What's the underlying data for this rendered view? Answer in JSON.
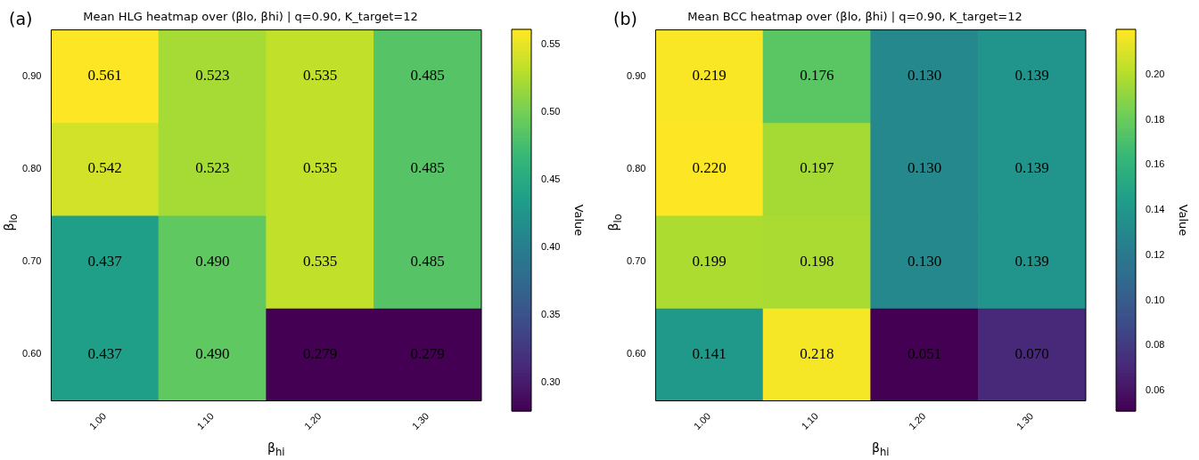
{
  "chart_data": [
    {
      "type": "heatmap",
      "title": "Mean HLG heatmap over (βlo, βhi) | q=0.90, K_target=12",
      "xlabel": "β$_{hi}$",
      "ylabel": "β$_{lo}$",
      "clabel": "Value",
      "annotations": [
        "(a)"
      ],
      "categories": [
        "1.00",
        "1.10",
        "1.20",
        "1.30"
      ],
      "y_categories": [
        "0.90",
        "0.80",
        "0.70",
        "0.60"
      ],
      "cells": [
        [
          0.561,
          0.523,
          0.535,
          0.485
        ],
        [
          0.542,
          0.523,
          0.535,
          0.485
        ],
        [
          0.437,
          0.49,
          0.535,
          0.485
        ],
        [
          0.437,
          0.49,
          0.279,
          0.279
        ]
      ],
      "cell_labels": [
        [
          "0.561",
          "0.523",
          "0.535",
          "0.485"
        ],
        [
          "0.542",
          "0.523",
          "0.535",
          "0.485"
        ],
        [
          "0.437",
          "0.490",
          "0.535",
          "0.485"
        ],
        [
          "0.437",
          "0.490",
          "0.279",
          "0.279"
        ]
      ],
      "clim": [
        0.279,
        0.561
      ],
      "cticks": [
        {
          "value": 0.3,
          "label": "0.30"
        },
        0.35,
        {
          "value": 0.4,
          "label": "0.40"
        },
        0.45,
        {
          "value": 0.5,
          "label": "0.50"
        },
        0.55
      ]
    },
    {
      "type": "heatmap",
      "title": "Mean BCC heatmap over (βlo, βhi) | q=0.90, K_target=12",
      "xlabel": "β$_{hi}$",
      "ylabel": "β$_{lo}$",
      "clabel": "Value",
      "annotations": [
        "(b)"
      ],
      "categories": [
        "1.00",
        "1.10",
        "1.20",
        "1.30"
      ],
      "y_categories": [
        "0.90",
        "0.80",
        "0.70",
        "0.60"
      ],
      "cells": [
        [
          0.219,
          0.176,
          0.13,
          0.139
        ],
        [
          0.22,
          0.197,
          0.13,
          0.139
        ],
        [
          0.199,
          0.198,
          0.13,
          0.139
        ],
        [
          0.141,
          0.218,
          0.051,
          0.07
        ]
      ],
      "cell_labels": [
        [
          "0.219",
          "0.176",
          "0.130",
          "0.139"
        ],
        [
          "0.220",
          "0.197",
          "0.130",
          "0.139"
        ],
        [
          "0.199",
          "0.198",
          "0.130",
          "0.139"
        ],
        [
          "0.141",
          "0.218",
          "0.051",
          "0.070"
        ]
      ],
      "clim": [
        0.051,
        0.22
      ],
      "cticks": [
        0.06,
        0.08,
        {
          "value": 0.1,
          "label": "0.10"
        },
        0.12,
        0.14,
        0.16,
        0.18,
        {
          "value": 0.2,
          "label": "0.20"
        }
      ]
    }
  ]
}
